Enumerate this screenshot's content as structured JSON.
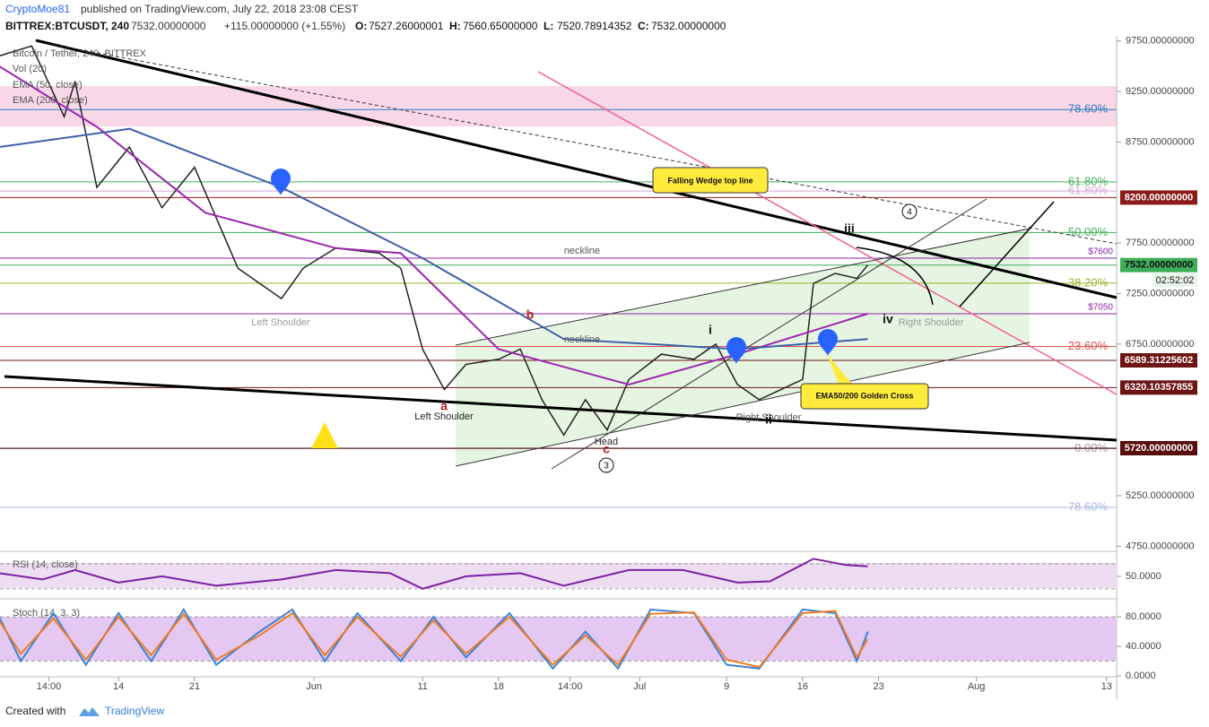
{
  "header": {
    "author": "CryptoMoe81",
    "published": "published on TradingView.com, July 22, 2018 23:08 CEST",
    "symbol": "BITTREX:BTCUSDT, 240",
    "last": "7532.00000000",
    "change": "+115.00000000 (+1.55%)",
    "ohlc": [
      {
        "label": "O:",
        "value": "7527.26000001"
      },
      {
        "label": "H:",
        "value": "7560.65000000"
      },
      {
        "label": "L:",
        "value": "7520.78914352"
      },
      {
        "label": "C:",
        "value": "7532.00000000"
      }
    ]
  },
  "indicators": [
    "Vol (20)"
  ],
  "annotations": {
    "wedge": "Falling Wedge top line",
    "cross": "EMA50/200 Golden Cross",
    "neckline": "neckline",
    "left_shoulder": "Left Shoulder",
    "right_shoulder": "Right Shoulder",
    "head": "Head",
    "waves": [
      "a",
      "b",
      "c",
      "i",
      "ii",
      "iii",
      "iv"
    ],
    "circled": [
      "3",
      "4"
    ],
    "countdown": "02:52:02"
  },
  "footer": {
    "created": "Created with",
    "brand": "TradingView"
  },
  "chart_data": [
    {
      "type": "line",
      "xlim": [
        "2018-05-03T02:00",
        "2018-08-13T22:00"
      ],
      "xticks": [
        {
          "value": "2018-05-07T14:00",
          "label": "14:00"
        },
        {
          "value": "2018-05-14",
          "label": "14"
        },
        {
          "value": "2018-05-21",
          "label": "21"
        },
        {
          "value": "2018-06-01",
          "label": "Jun"
        },
        {
          "value": "2018-06-11",
          "label": "11"
        },
        {
          "value": "2018-06-18",
          "label": "18"
        },
        {
          "value": "2018-06-24T14:00",
          "label": "14:00"
        },
        {
          "value": "2018-07-01",
          "label": "Jul"
        },
        {
          "value": "2018-07-09",
          "label": "9"
        },
        {
          "value": "2018-07-16",
          "label": "16"
        },
        {
          "value": "2018-07-23",
          "label": "23"
        },
        {
          "value": "2018-08-01",
          "label": "Aug"
        },
        {
          "value": "2018-08-13",
          "label": "13"
        }
      ],
      "ylim": [
        4700,
        9800
      ],
      "yticks": [
        {
          "value": 9750,
          "label": "9750.00000000"
        },
        {
          "value": 9250,
          "label": "9250.00000000"
        },
        {
          "value": 8750,
          "label": "8750.00000000"
        },
        {
          "value": 7750,
          "label": "7750.00000000"
        },
        {
          "value": 7250,
          "label": "7250.00000000"
        },
        {
          "value": 6750,
          "label": "6750.00000000"
        },
        {
          "value": 5250,
          "label": "5250.00000000"
        },
        {
          "value": 4750,
          "label": "4750.00000000"
        }
      ],
      "series": [
        {
          "name": "Bitcoin / Tether, 240, BITTREX",
          "color": "#222222",
          "x": [
            "2018-05-03",
            "2018-05-06",
            "2018-05-09",
            "2018-05-10",
            "2018-05-12",
            "2018-05-15",
            "2018-05-18",
            "2018-05-21",
            "2018-05-23",
            "2018-05-25",
            "2018-05-29",
            "2018-05-31",
            "2018-06-03",
            "2018-06-07",
            "2018-06-09",
            "2018-06-11",
            "2018-06-13",
            "2018-06-15",
            "2018-06-18",
            "2018-06-20",
            "2018-06-22",
            "2018-06-24",
            "2018-06-26",
            "2018-06-28",
            "2018-06-30",
            "2018-07-03",
            "2018-07-06",
            "2018-07-08",
            "2018-07-10",
            "2018-07-12",
            "2018-07-16",
            "2018-07-17",
            "2018-07-19",
            "2018-07-21",
            "2018-07-22"
          ],
          "values": [
            9600,
            9700,
            9000,
            9350,
            8300,
            8700,
            8100,
            8500,
            8000,
            7500,
            7200,
            7500,
            7700,
            7650,
            7500,
            6700,
            6300,
            6550,
            6600,
            6700,
            6200,
            5850,
            6200,
            5900,
            6400,
            6650,
            6600,
            6750,
            6350,
            6200,
            6400,
            7350,
            7450,
            7400,
            7532
          ]
        },
        {
          "name": "EMA (50, close)",
          "color": "#9c27b0",
          "x": [
            "2018-05-03",
            "2018-05-12",
            "2018-05-22",
            "2018-06-03",
            "2018-06-09",
            "2018-06-18",
            "2018-06-30",
            "2018-07-10",
            "2018-07-22"
          ],
          "values": [
            9500,
            8900,
            8050,
            7700,
            7650,
            6700,
            6350,
            6650,
            7050
          ]
        },
        {
          "name": "EMA (200, close)",
          "color": "#3f5fa8",
          "x": [
            "2018-05-03",
            "2018-05-15",
            "2018-05-29",
            "2018-06-11",
            "2018-06-24",
            "2018-07-10",
            "2018-07-22"
          ],
          "values": [
            8700,
            8880,
            8300,
            7600,
            6800,
            6700,
            6800
          ]
        }
      ],
      "levels": [
        {
          "value": 8200,
          "label": "8200.00000000",
          "color": "#8b1a1a"
        },
        {
          "value": 7532,
          "label": "7532.00000000",
          "color": "#3fae5a"
        },
        {
          "value": 6589.31225602,
          "label": "6589.31225602",
          "color": "#6d1515"
        },
        {
          "value": 6320.10357855,
          "label": "6320.10357855",
          "color": "#6d1515"
        },
        {
          "value": 5720,
          "label": "5720.00000000",
          "color": "#5a0f0f"
        }
      ],
      "price_lines": [
        {
          "value": 7600,
          "label": "$7600",
          "color": "#8e24aa"
        },
        {
          "value": 7050,
          "label": "$7050",
          "color": "#8e24aa"
        }
      ],
      "fib": [
        {
          "value": 9070,
          "label": "78.60%",
          "color": "#2f7fc1"
        },
        {
          "value": 8355,
          "label": "61.80%",
          "color": "#43b05c"
        },
        {
          "value": 7854,
          "label": "50.00%",
          "color": "#43b05c"
        },
        {
          "value": 7353,
          "label": "38.20%",
          "color": "#9bb32a"
        },
        {
          "value": 6727,
          "label": "23.60%",
          "color": "#e0524a"
        },
        {
          "value": 5716,
          "label": "0.00%",
          "color": "#9a9a9a"
        }
      ],
      "fib_faint": [
        {
          "value": 8265,
          "label": "61.80%",
          "color": "#d3a8d8"
        },
        {
          "value": 5135,
          "label": "78.60%",
          "color": "#a8b8e6"
        }
      ]
    },
    {
      "type": "line",
      "title": "RSI (14, close)",
      "xlim": [
        "2018-05-03T02:00",
        "2018-08-13T22:00"
      ],
      "ylim": [
        14,
        90
      ],
      "yticks": [
        {
          "value": 50,
          "label": "50.0000"
        }
      ],
      "bands": [
        30,
        70
      ],
      "series": [
        {
          "color": "#7b1fa2",
          "x": [
            "2018-05-03",
            "2018-05-07",
            "2018-05-10",
            "2018-05-14",
            "2018-05-18",
            "2018-05-23",
            "2018-05-29",
            "2018-06-03",
            "2018-06-08",
            "2018-06-11",
            "2018-06-15",
            "2018-06-20",
            "2018-06-24",
            "2018-06-30",
            "2018-07-05",
            "2018-07-10",
            "2018-07-13",
            "2018-07-17",
            "2018-07-20",
            "2018-07-22"
          ],
          "values": [
            55,
            45,
            60,
            40,
            50,
            35,
            45,
            60,
            55,
            30,
            50,
            55,
            35,
            60,
            60,
            40,
            42,
            78,
            68,
            66
          ]
        }
      ]
    },
    {
      "type": "line",
      "title": "Stoch (14, 3, 3)",
      "xlim": [
        "2018-05-03T02:00",
        "2018-08-13T22:00"
      ],
      "ylim": [
        0,
        102
      ],
      "yticks": [
        {
          "value": 80,
          "label": "80.0000"
        },
        {
          "value": 40,
          "label": "40.0000"
        },
        {
          "value": 0,
          "label": "0.0000"
        }
      ],
      "bands": [
        20,
        80
      ],
      "series": [
        {
          "color": "#3b82d6",
          "x": [
            "2018-05-03",
            "2018-05-05",
            "2018-05-08",
            "2018-05-11",
            "2018-05-14",
            "2018-05-17",
            "2018-05-20",
            "2018-05-23",
            "2018-05-27",
            "2018-05-30",
            "2018-06-02",
            "2018-06-05",
            "2018-06-09",
            "2018-06-12",
            "2018-06-15",
            "2018-06-19",
            "2018-06-23",
            "2018-06-26",
            "2018-06-29",
            "2018-07-02",
            "2018-07-06",
            "2018-07-09",
            "2018-07-12",
            "2018-07-16",
            "2018-07-19",
            "2018-07-21",
            "2018-07-22"
          ],
          "values": [
            80,
            20,
            85,
            15,
            85,
            20,
            90,
            15,
            60,
            90,
            20,
            85,
            20,
            80,
            25,
            85,
            10,
            60,
            10,
            90,
            85,
            15,
            10,
            90,
            85,
            20,
            60
          ]
        },
        {
          "color": "#f07c22",
          "x": [
            "2018-05-03",
            "2018-05-05",
            "2018-05-08",
            "2018-05-11",
            "2018-05-14",
            "2018-05-17",
            "2018-05-20",
            "2018-05-23",
            "2018-05-27",
            "2018-05-30",
            "2018-06-02",
            "2018-06-05",
            "2018-06-09",
            "2018-06-12",
            "2018-06-15",
            "2018-06-19",
            "2018-06-23",
            "2018-06-26",
            "2018-06-29",
            "2018-07-02",
            "2018-07-06",
            "2018-07-09",
            "2018-07-12",
            "2018-07-16",
            "2018-07-19",
            "2018-07-21",
            "2018-07-22"
          ],
          "values": [
            75,
            30,
            78,
            22,
            80,
            28,
            84,
            22,
            55,
            85,
            28,
            80,
            26,
            75,
            30,
            80,
            15,
            55,
            15,
            84,
            86,
            22,
            12,
            85,
            88,
            25,
            50
          ]
        }
      ]
    }
  ]
}
